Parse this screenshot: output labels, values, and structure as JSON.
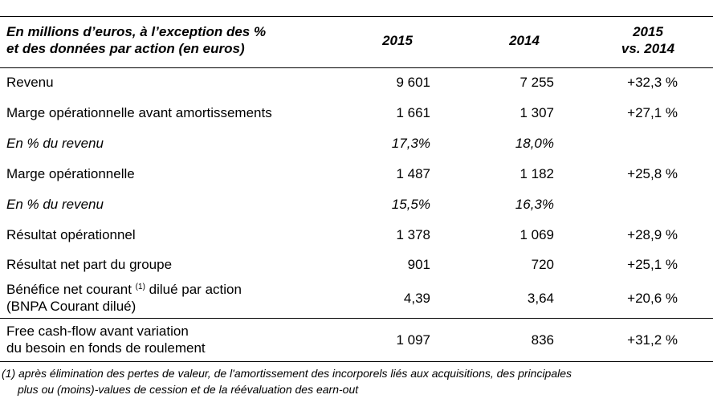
{
  "header": {
    "label_line1": "En millions d’euros, à l’exception des %",
    "label_line2": "et des données par action (en euros)",
    "col_2015": "2015",
    "col_2014": "2014",
    "col_vs_line1": "2015",
    "col_vs_line2": "vs. 2014"
  },
  "rows": [
    {
      "label": "Revenu",
      "v2015": "9 601",
      "v2014": "7 255",
      "vs": "+32,3 %"
    },
    {
      "label": "Marge opérationnelle avant amortissements",
      "v2015": "1 661",
      "v2014": "1 307",
      "vs": "+27,1 %"
    },
    {
      "label": "En % du revenu",
      "v2015": "17,3%",
      "v2014": "18,0%",
      "vs": ""
    },
    {
      "label": "Marge opérationnelle",
      "v2015": "1 487",
      "v2014": "1 182",
      "vs": "+25,8 %"
    },
    {
      "label": "En % du revenu",
      "v2015": "15,5%",
      "v2014": "16,3%",
      "vs": ""
    },
    {
      "label": "Résultat opérationnel",
      "v2015": "1 378",
      "v2014": "1 069",
      "vs": "+28,9 %"
    },
    {
      "label": "Résultat net part du groupe",
      "v2015": "901",
      "v2014": "720",
      "vs": "+25,1 %"
    },
    {
      "label_part1": "Bénéfice net courant ",
      "label_note": "(1)",
      "label_part2": " dilué par action",
      "label_line2": "(BNPA Courant dilué)",
      "v2015": "4,39",
      "v2014": "3,64",
      "vs": "+20,6 %"
    },
    {
      "label": "Free cash-flow avant variation",
      "label_line2": "du besoin en fonds de roulement",
      "v2015": "1 097",
      "v2014": "836",
      "vs": "+31,2 %"
    }
  ],
  "footnote": {
    "line1": "(1) après élimination des pertes de valeur, de l'amortissement des incorporels liés aux acquisitions, des principales",
    "line2": "plus ou (moins)-values de cession et de la réévaluation des earn-out"
  }
}
